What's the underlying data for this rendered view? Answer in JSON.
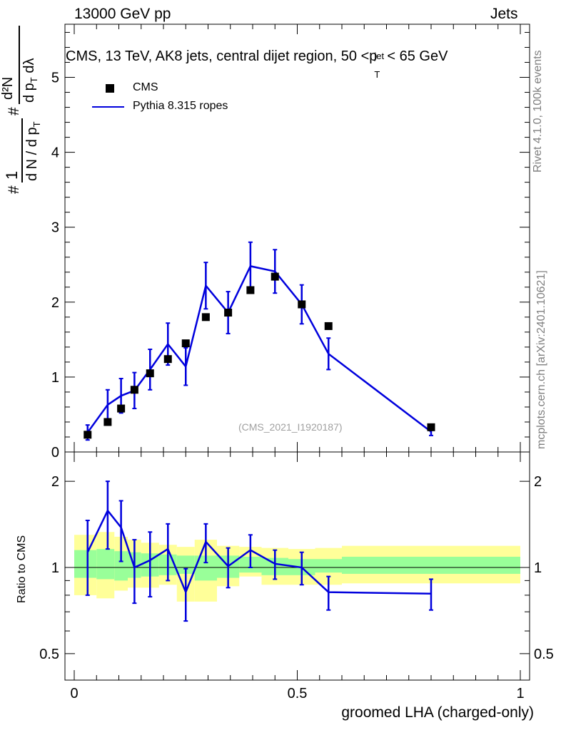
{
  "header": {
    "energy_label": "13000 GeV pp",
    "category_label": "Jets"
  },
  "side_labels": {
    "rivet": "Rivet 4.1.0,  100k events",
    "mcplots": "mcplots.cern.ch [arXiv:2401.10621]"
  },
  "colors": {
    "mc_line": "#0000dd",
    "data_marker": "#000000",
    "band_inner": "#99ff99",
    "band_outer": "#ffff99",
    "watermark": "#a0a0a0"
  },
  "chart_data": [
    {
      "type": "scatter",
      "panel": "main",
      "title": "CMS, 13 TeV, AK8 jets, central dijet region, 50 <p_T^{jet}< 65 GeV",
      "title_parts": {
        "prefix": "CMS, 13 TeV, AK8 jets, central dijet region, 50 <p",
        "sup": "jet",
        "sub": "T",
        "suffix": "< 65 GeV"
      },
      "ylabel_parts": {
        "hash": "#",
        "one": "1",
        "denominator": "d N / d p",
        "sub_T": "T",
        "numerator": "d²N",
        "numerator_den": "d p",
        "lambda": "dλ"
      },
      "xlabel": "groomed LHA (charged-only)",
      "xlim": [
        0,
        1
      ],
      "ylim": [
        0,
        5.7
      ],
      "yticks": [
        0,
        1,
        2,
        3,
        4,
        5
      ],
      "watermark": "(CMS_2021_I1920187)",
      "legend": {
        "data_label": "CMS",
        "mc_label": "Pythia 8.315 ropes",
        "placement": "top-left"
      },
      "data": {
        "name": "CMS",
        "x": [
          0.03,
          0.075,
          0.105,
          0.135,
          0.17,
          0.21,
          0.25,
          0.295,
          0.345,
          0.395,
          0.45,
          0.51,
          0.57,
          0.8
        ],
        "y": [
          0.23,
          0.4,
          0.58,
          0.83,
          1.05,
          1.24,
          1.45,
          1.8,
          1.86,
          2.16,
          2.34,
          1.97,
          1.68,
          0.33
        ]
      },
      "mc": {
        "name": "Pythia 8.315 ropes",
        "x": [
          0.03,
          0.075,
          0.105,
          0.135,
          0.17,
          0.21,
          0.25,
          0.295,
          0.345,
          0.395,
          0.45,
          0.51,
          0.57,
          0.8
        ],
        "y": [
          0.26,
          0.63,
          0.75,
          0.82,
          1.1,
          1.44,
          1.14,
          2.22,
          1.86,
          2.48,
          2.41,
          1.97,
          1.31,
          0.27
        ],
        "err": [
          0.1,
          0.2,
          0.23,
          0.24,
          0.27,
          0.28,
          0.25,
          0.31,
          0.28,
          0.32,
          0.29,
          0.26,
          0.21,
          0.05
        ]
      }
    },
    {
      "type": "line",
      "panel": "ratio",
      "ylabel": "Ratio to CMS",
      "xlabel": "groomed LHA (charged-only)",
      "xlim": [
        0,
        1
      ],
      "ylim": [
        0.42,
        2.3
      ],
      "yticks": [
        0.5,
        1,
        2
      ],
      "xticks": [
        0,
        0.5,
        1
      ],
      "band_edges": [
        0,
        0.05,
        0.09,
        0.12,
        0.15,
        0.19,
        0.23,
        0.27,
        0.32,
        0.37,
        0.42,
        0.48,
        0.54,
        0.6,
        1.0
      ],
      "band_inner": [
        [
          0.92,
          1.15
        ],
        [
          0.91,
          1.16
        ],
        [
          0.9,
          1.14
        ],
        [
          0.92,
          1.13
        ],
        [
          0.93,
          1.12
        ],
        [
          0.94,
          1.11
        ],
        [
          0.95,
          1.1
        ],
        [
          0.9,
          1.1
        ],
        [
          0.92,
          1.1
        ],
        [
          0.96,
          1.09
        ],
        [
          0.94,
          1.08
        ],
        [
          0.94,
          1.07
        ],
        [
          0.96,
          1.07
        ],
        [
          0.95,
          1.09
        ]
      ],
      "band_outer": [
        [
          0.8,
          1.3
        ],
        [
          0.78,
          1.33
        ],
        [
          0.83,
          1.28
        ],
        [
          0.85,
          1.25
        ],
        [
          0.85,
          1.22
        ],
        [
          0.87,
          1.2
        ],
        [
          0.76,
          1.18
        ],
        [
          0.76,
          1.25
        ],
        [
          0.86,
          1.19
        ],
        [
          0.93,
          1.18
        ],
        [
          0.87,
          1.17
        ],
        [
          0.87,
          1.16
        ],
        [
          0.87,
          1.17
        ],
        [
          0.88,
          1.19
        ]
      ],
      "mc": {
        "x": [
          0.03,
          0.075,
          0.105,
          0.135,
          0.17,
          0.21,
          0.25,
          0.295,
          0.345,
          0.395,
          0.45,
          0.51,
          0.57,
          0.8
        ],
        "y": [
          1.13,
          1.58,
          1.38,
          1.0,
          1.06,
          1.16,
          0.82,
          1.23,
          1.01,
          1.15,
          1.03,
          1.0,
          0.82,
          0.81
        ],
        "err": [
          0.33,
          0.42,
          0.33,
          0.25,
          0.27,
          0.26,
          0.17,
          0.19,
          0.16,
          0.15,
          0.12,
          0.13,
          0.11,
          0.1
        ],
        "xerr_last": [
          0.57,
          0.8
        ]
      }
    }
  ]
}
